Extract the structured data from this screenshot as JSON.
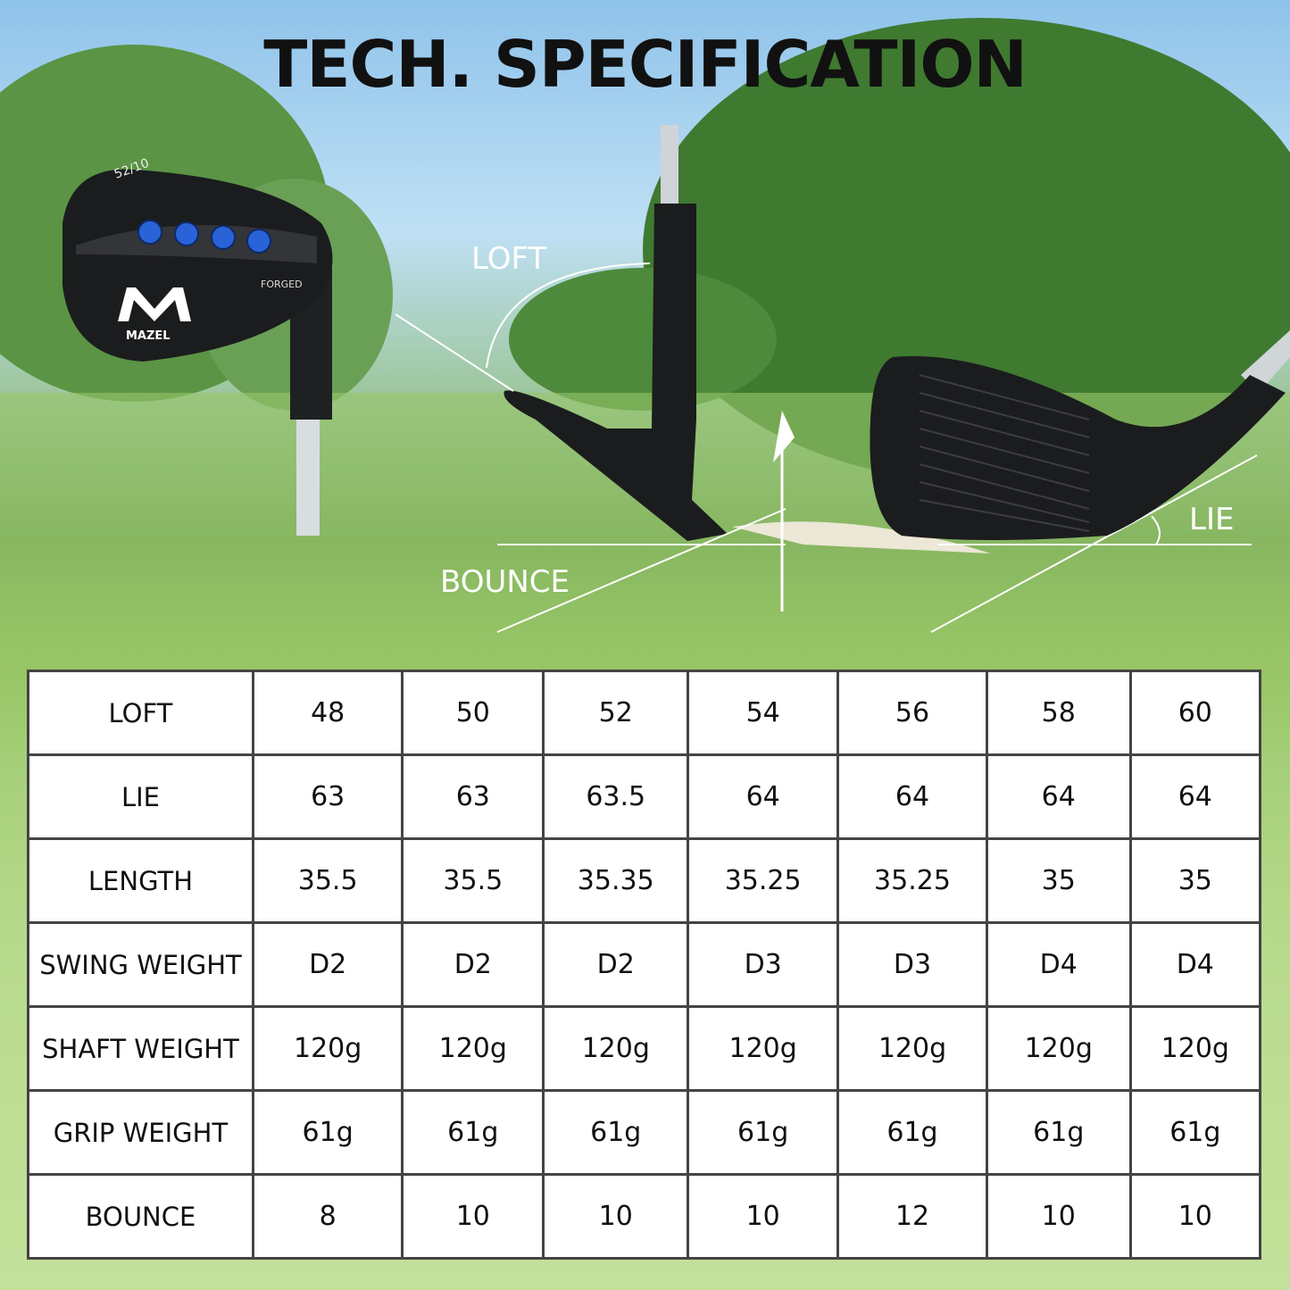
{
  "title": "TECH. SPECIFICATION",
  "labels": {
    "loft": "LOFT",
    "bounce": "BOUNCE",
    "lie": "LIE"
  },
  "club_head": {
    "brand": "MAZEL",
    "finish": "FORGED",
    "marking": "52/10"
  },
  "colors": {
    "accent_blue": "#2a63d8",
    "club_black": "#1b1c1e"
  },
  "table": {
    "rows": [
      {
        "label": "LOFT",
        "values": [
          "48",
          "50",
          "52",
          "54",
          "56",
          "58",
          "60"
        ]
      },
      {
        "label": "LIE",
        "values": [
          "63",
          "63",
          "63.5",
          "64",
          "64",
          "64",
          "64"
        ]
      },
      {
        "label": "LENGTH",
        "values": [
          "35.5",
          "35.5",
          "35.35",
          "35.25",
          "35.25",
          "35",
          "35"
        ]
      },
      {
        "label": "SWING WEIGHT",
        "values": [
          "D2",
          "D2",
          "D2",
          "D3",
          "D3",
          "D4",
          "D4"
        ]
      },
      {
        "label": "SHAFT WEIGHT",
        "values": [
          "120g",
          "120g",
          "120g",
          "120g",
          "120g",
          "120g",
          "120g"
        ]
      },
      {
        "label": "GRIP WEIGHT",
        "values": [
          "61g",
          "61g",
          "61g",
          "61g",
          "61g",
          "61g",
          "61g"
        ]
      },
      {
        "label": "BOUNCE",
        "values": [
          "8",
          "10",
          "10",
          "10",
          "12",
          "10",
          "10"
        ]
      }
    ]
  }
}
